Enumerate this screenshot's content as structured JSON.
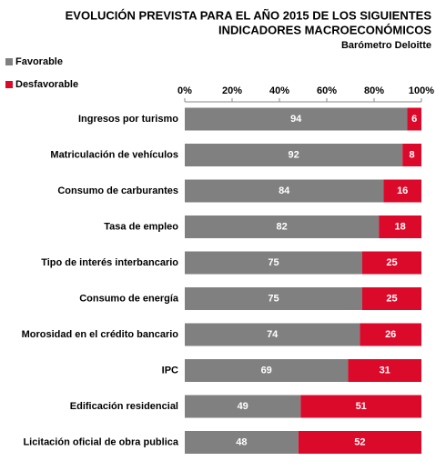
{
  "chart_data": {
    "type": "bar",
    "orientation": "horizontal",
    "stacked": true,
    "title": [
      "EVOLUCIÓN PREVISTA PARA EL AÑO 2015 DE LOS SIGUIENTES",
      "INDICADORES MACROECONÓMICOS"
    ],
    "subtitle": "Barómetro Deloitte",
    "categories": [
      "Ingresos por turismo",
      "Matriculación de vehículos",
      "Consumo de carburantes",
      "Tasa de empleo",
      "Tipo de interés interbancario",
      "Consumo de energía",
      "Morosidad en el crédito bancario",
      "IPC",
      "Edificación residencial",
      "Licitación oficial de obra publica"
    ],
    "series": [
      {
        "name": "Favorable",
        "color": "#808080",
        "values": [
          94,
          92,
          84,
          82,
          75,
          75,
          74,
          69,
          49,
          48
        ]
      },
      {
        "name": "Desfavorable",
        "color": "#dc0a2a",
        "values": [
          6,
          8,
          16,
          18,
          25,
          25,
          26,
          31,
          51,
          52
        ]
      }
    ],
    "xlim": [
      0,
      100
    ],
    "xticks": [
      {
        "value": 0,
        "label": "0%"
      },
      {
        "value": 20,
        "label": "20%"
      },
      {
        "value": 40,
        "label": "40%"
      },
      {
        "value": 60,
        "label": "60%"
      },
      {
        "value": 80,
        "label": "80%"
      },
      {
        "value": 100,
        "label": "100%"
      }
    ],
    "legend": "top-left"
  }
}
